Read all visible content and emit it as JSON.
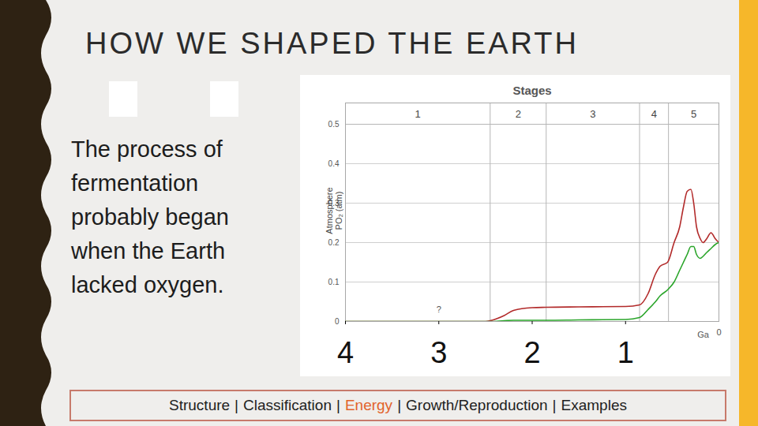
{
  "slide": {
    "title": "HOW WE SHAPED THE EARTH",
    "text": "The process of fermentation probably began when the Earth lacked oxygen.",
    "nav": {
      "items": [
        "Structure",
        "Classification",
        "Energy",
        "Growth/Reproduction",
        "Examples"
      ],
      "separator": "|",
      "active": "Energy"
    }
  },
  "chart_data": {
    "type": "line",
    "y_label": [
      "Atmosphere",
      "PO₂ (atm)"
    ],
    "x_label": "Ga",
    "stages": {
      "title": "Stages",
      "labels": [
        "1",
        "2",
        "3",
        "4",
        "5"
      ],
      "bounds": [
        2.45,
        1.85,
        0.85,
        0.54
      ]
    },
    "x": [
      4,
      2.5,
      2.45,
      2.3,
      2.2,
      2.0,
      1.85,
      1.5,
      1.0,
      0.85,
      0.76,
      0.68,
      0.63,
      0.55,
      0.48,
      0.42,
      0.38,
      0.34,
      0.3,
      0.27,
      0.24,
      0.2,
      0.17,
      0.13,
      0.085,
      0.04,
      0
    ],
    "series": [
      {
        "color": "#b22a2a",
        "values": [
          0,
          0,
          0.002,
          0.015,
          0.028,
          0.035,
          0.036,
          0.037,
          0.038,
          0.042,
          0.07,
          0.12,
          0.14,
          0.15,
          0.2,
          0.24,
          0.29,
          0.33,
          0.335,
          0.3,
          0.24,
          0.21,
          0.2,
          0.21,
          0.225,
          0.21,
          0.2
        ]
      },
      {
        "color": "#2aa52a",
        "values": [
          0,
          0,
          0,
          0.002,
          0.003,
          0.003,
          0.003,
          0.004,
          0.005,
          0.01,
          0.03,
          0.05,
          0.065,
          0.08,
          0.1,
          0.13,
          0.15,
          0.17,
          0.19,
          0.19,
          0.17,
          0.16,
          0.165,
          0.175,
          0.185,
          0.195,
          0.2
        ]
      }
    ],
    "xlim": [
      4,
      0
    ],
    "xticks": [
      4,
      3,
      2,
      1,
      0
    ],
    "ylim": [
      0,
      0.5
    ],
    "yticks": [
      0,
      0.1,
      0.2,
      0.3,
      0.4,
      0.5
    ],
    "grid": true,
    "annotations": [
      {
        "text": "?",
        "x": 3,
        "y": 0.03
      }
    ]
  }
}
